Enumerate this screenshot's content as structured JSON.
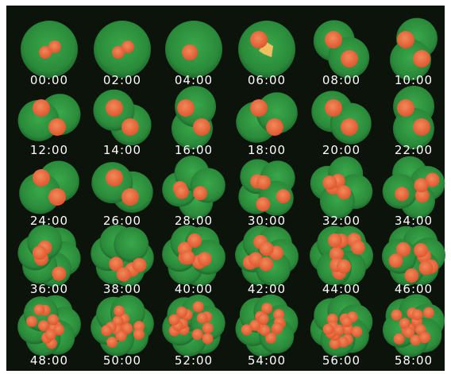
{
  "timestamps": [
    "00:00",
    "02:00",
    "04:00",
    "06:00",
    "08:00",
    "10:00",
    "12:00",
    "14:00",
    "16:00",
    "18:00",
    "20:00",
    "22:00",
    "24:00",
    "26:00",
    "28:00",
    "30:00",
    "32:00",
    "34:00",
    "36:00",
    "38:00",
    "40:00",
    "42:00",
    "44:00",
    "46:00",
    "48:00",
    "50:00",
    "52:00",
    "54:00",
    "56:00",
    "58:00"
  ]
}
